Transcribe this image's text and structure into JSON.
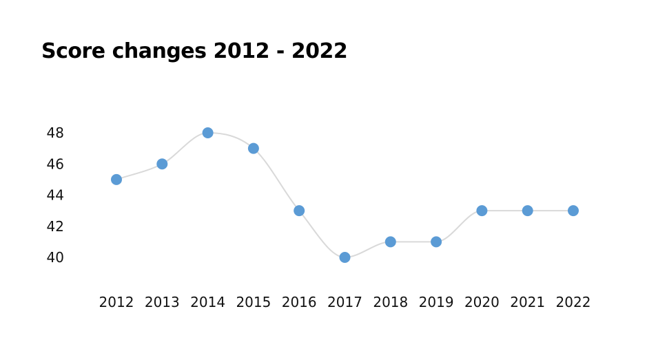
{
  "chart_data": {
    "type": "line",
    "title": "Score changes 2012 - 2022",
    "categories": [
      "2012",
      "2013",
      "2014",
      "2015",
      "2016",
      "2017",
      "2018",
      "2019",
      "2020",
      "2021",
      "2022"
    ],
    "series": [
      {
        "values": [
          45,
          46,
          48,
          47,
          43,
          40,
          41,
          41,
          43,
          43,
          43
        ]
      }
    ],
    "y_ticks": [
      "48",
      "46",
      "44",
      "42",
      "40"
    ],
    "ylim": [
      40,
      48
    ],
    "xlabel": "",
    "ylabel": "",
    "grid": false,
    "line_style": "smooth",
    "colors": {
      "line": "#d9d9d9",
      "marker": "#5b9bd5"
    }
  }
}
